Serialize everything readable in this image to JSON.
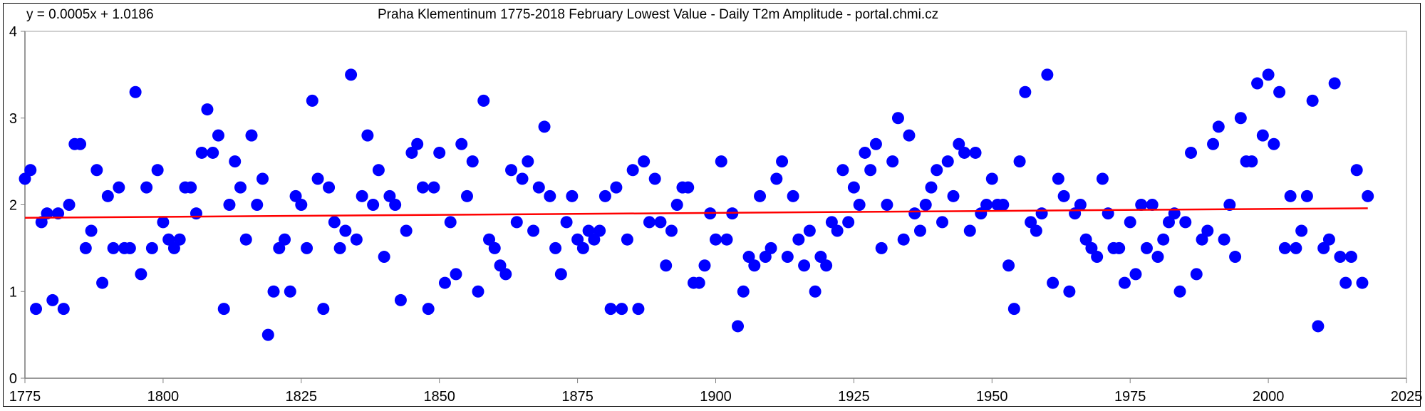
{
  "chart_data": {
    "type": "scatter",
    "title": "Praha Klementinum 1775-2018 February Lowest Value - Daily T2m Amplitude - portal.chmi.cz",
    "trend_equation": "y = 0.0005x + 1.0186",
    "xlabel": "",
    "ylabel": "",
    "xlim": [
      1775,
      2025
    ],
    "ylim": [
      0,
      4
    ],
    "x_ticks": [
      "1775",
      "1800",
      "1825",
      "1850",
      "1875",
      "1900",
      "1925",
      "1950",
      "1975",
      "2000",
      "2025"
    ],
    "y_ticks": [
      "0",
      "1",
      "2",
      "3",
      "4"
    ],
    "grid": false,
    "legend": "none",
    "x_start": 1775,
    "values": [
      2.3,
      2.4,
      0.8,
      1.8,
      1.9,
      0.9,
      1.9,
      0.8,
      2.0,
      2.7,
      2.7,
      1.5,
      1.7,
      2.4,
      1.1,
      2.1,
      1.5,
      2.2,
      1.5,
      1.5,
      3.3,
      1.2,
      2.2,
      1.5,
      2.4,
      1.8,
      1.6,
      1.5,
      1.6,
      2.2,
      2.2,
      1.9,
      2.6,
      3.1,
      2.6,
      2.8,
      0.8,
      2.0,
      2.5,
      2.2,
      1.6,
      2.8,
      2.0,
      2.3,
      0.5,
      1.0,
      1.5,
      1.6,
      1.0,
      2.1,
      2.0,
      1.5,
      3.2,
      2.3,
      0.8,
      2.2,
      1.8,
      1.5,
      1.7,
      3.5,
      1.6,
      2.1,
      2.8,
      2.0,
      2.4,
      1.4,
      2.1,
      2.0,
      0.9,
      1.7,
      2.6,
      2.7,
      2.2,
      0.8,
      2.2,
      2.6,
      1.1,
      1.8,
      1.2,
      2.7,
      2.1,
      2.5,
      1.0,
      3.2,
      1.6,
      1.5,
      1.3,
      1.2,
      2.4,
      1.8,
      2.3,
      2.5,
      1.7,
      2.2,
      2.9,
      2.1,
      1.5,
      1.2,
      1.8,
      2.1,
      1.6,
      1.5,
      1.7,
      1.6,
      1.7,
      2.1,
      0.8,
      2.2,
      0.8,
      1.6,
      2.4,
      0.8,
      2.5,
      1.8,
      2.3,
      1.8,
      1.3,
      1.7,
      2.0,
      2.2,
      2.2,
      1.1,
      1.1,
      1.3,
      1.9,
      1.6,
      2.5,
      1.6,
      1.9,
      0.6,
      1.0,
      1.4,
      1.3,
      2.1,
      1.4,
      1.5,
      2.3,
      2.5,
      1.4,
      2.1,
      1.6,
      1.3,
      1.7,
      1.0,
      1.4,
      1.3,
      1.8,
      1.7,
      2.4,
      1.8,
      2.2,
      2.0,
      2.6,
      2.4,
      2.7,
      1.5,
      2.0,
      2.5,
      3.0,
      1.6,
      2.8,
      1.9,
      1.7,
      2.0,
      2.2,
      2.4,
      1.8,
      2.5,
      2.1,
      2.7,
      2.6,
      1.7,
      2.6,
      1.9,
      2.0,
      2.3,
      2.0,
      2.0,
      1.3,
      0.8,
      2.5,
      3.3,
      1.8,
      1.7,
      1.9,
      3.5,
      1.1,
      2.3,
      2.1,
      1.0,
      1.9,
      2.0,
      1.6,
      1.5,
      1.4,
      2.3,
      1.9,
      1.5,
      1.5,
      1.1,
      1.8,
      1.2,
      2.0,
      1.5,
      2.0,
      1.4,
      1.6,
      1.8,
      1.9,
      1.0,
      1.8,
      2.6,
      1.2,
      1.6,
      1.7,
      2.7,
      2.9,
      1.6,
      2.0,
      1.4,
      3.0,
      2.5,
      2.5,
      3.4,
      2.8,
      3.5,
      2.7,
      3.3,
      1.5,
      2.1,
      1.5,
      1.7,
      2.1,
      3.2,
      0.6,
      1.5,
      1.6,
      3.4,
      1.4,
      1.1,
      1.4,
      2.4,
      1.1,
      2.1
    ],
    "trend": {
      "x": [
        1775,
        2018
      ],
      "y": [
        1.85,
        1.96
      ]
    },
    "colors": {
      "points": "#0000FF",
      "trend": "#FF0000",
      "axis": "#808080"
    }
  }
}
